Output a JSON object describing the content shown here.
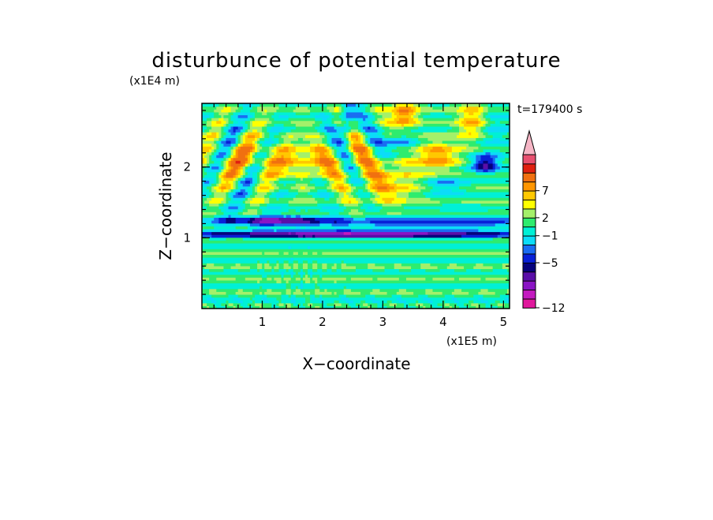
{
  "chart_data": {
    "type": "heatmap",
    "title": "disturbunce of potential temperature",
    "xlabel": "X−coordinate",
    "ylabel": "Z−coordinate",
    "x_unit": "(x1E5 m)",
    "y_unit": "(x1E4 m)",
    "time_label": "t=179400 s",
    "xlim": [
      0,
      5.1
    ],
    "ylim": [
      0,
      2.9
    ],
    "x_ticks": [
      1,
      2,
      3,
      4,
      5
    ],
    "y_ticks": [
      1,
      2
    ],
    "x_minor_step": 0.2,
    "y_minor_step": 0.2,
    "colorbar": {
      "bins": 17,
      "extend_top": true,
      "colors": [
        "#e0189c",
        "#c41ac0",
        "#8a14c4",
        "#5a0ea8",
        "#06027c",
        "#0820d8",
        "#1a6cf2",
        "#0cdcf8",
        "#00f0d6",
        "#2eec6e",
        "#a4f06a",
        "#ffff00",
        "#ffc800",
        "#ff9600",
        "#f07010",
        "#e02010",
        "#e85070",
        "#f6b6c6"
      ],
      "tick_labels": [
        {
          "bin": 0,
          "text": "−12"
        },
        {
          "bin": 5,
          "text": "−5"
        },
        {
          "bin": 8,
          "text": "−1"
        },
        {
          "bin": 10,
          "text": "2"
        },
        {
          "bin": 13,
          "text": "7"
        }
      ]
    },
    "field": {
      "description": "temperature disturbance field; data values per colorbar bin",
      "grid_nx": 128,
      "grid_nz": 72
    }
  }
}
